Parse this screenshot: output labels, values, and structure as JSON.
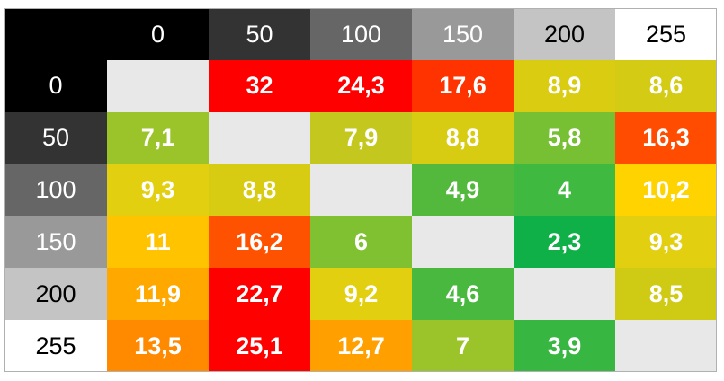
{
  "chart_data": {
    "type": "heatmap",
    "title": "",
    "x": [
      "0",
      "50",
      "100",
      "150",
      "200",
      "255"
    ],
    "y": [
      "0",
      "50",
      "100",
      "150",
      "200",
      "255"
    ],
    "header_colors": [
      "#000000",
      "#333333",
      "#666666",
      "#999999",
      "#c4c4c4",
      "#ffffff"
    ],
    "header_text_colors": [
      "#ffffff",
      "#ffffff",
      "#ffffff",
      "#ffffff",
      "#000000",
      "#000000"
    ],
    "diagonal_color": "#e8e8e8",
    "rows": [
      {
        "values": [
          "",
          "32",
          "24,3",
          "17,6",
          "8,9",
          "8,6"
        ],
        "colors": [
          "#e8e8e8",
          "#ff0000",
          "#ff0000",
          "#ff3300",
          "#d9cc11",
          "#d4cc14"
        ]
      },
      {
        "values": [
          "7,1",
          "",
          "7,9",
          "8,8",
          "5,8",
          "16,3"
        ],
        "colors": [
          "#9bc42a",
          "#e8e8e8",
          "#c4c81e",
          "#d8cc12",
          "#77bf33",
          "#ff4c00"
        ]
      },
      {
        "values": [
          "9,3",
          "8,8",
          "",
          "4,9",
          "4",
          "10,2"
        ],
        "colors": [
          "#e1cf10",
          "#d8cc12",
          "#e8e8e8",
          "#52b93c",
          "#3fb940",
          "#ffd300"
        ]
      },
      {
        "values": [
          "11",
          "16,2",
          "6",
          "",
          "2,3",
          "9,3"
        ],
        "colors": [
          "#ffc300",
          "#ff5200",
          "#80c131",
          "#e8e8e8",
          "#0fb047",
          "#e1cf10"
        ]
      },
      {
        "values": [
          "11,9",
          "22,7",
          "9,2",
          "4,6",
          "",
          "8,5"
        ],
        "colors": [
          "#ffa800",
          "#ff0000",
          "#e1cf10",
          "#48b93e",
          "#e8e8e8",
          "#cfcb15"
        ]
      },
      {
        "values": [
          "13,5",
          "25,1",
          "12,7",
          "7",
          "3,9",
          ""
        ],
        "colors": [
          "#ff8a00",
          "#ff0000",
          "#ffa000",
          "#9bc42a",
          "#38b642",
          "#e8e8e8"
        ]
      }
    ]
  }
}
